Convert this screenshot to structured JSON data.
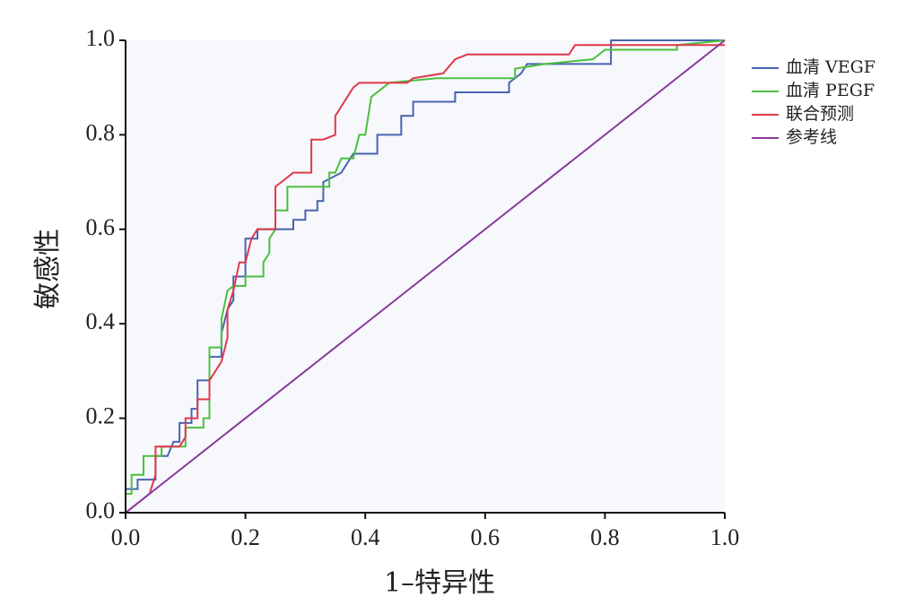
{
  "chart_data": {
    "type": "line",
    "xlabel": "1–特异性",
    "ylabel": "敏感性",
    "xlim": [
      0,
      1
    ],
    "ylim": [
      0,
      1
    ],
    "xticks": [
      {
        "value": 0,
        "label": "0.0"
      },
      0.2,
      0.4,
      0.6,
      0.8,
      {
        "value": 1,
        "label": "1.0"
      }
    ],
    "yticks": [
      {
        "value": 0,
        "label": "0.0"
      },
      0.2,
      0.4,
      0.6,
      0.8,
      {
        "value": 1,
        "label": "1.0"
      }
    ],
    "grid": false,
    "legend": "right",
    "series": [
      {
        "name": "血清 VEGF",
        "color": "#4a63b0",
        "x": [
          0,
          0,
          0.02,
          0.02,
          0.05,
          0.05,
          0.07,
          0.08,
          0.09,
          0.09,
          0.11,
          0.11,
          0.12,
          0.12,
          0.14,
          0.14,
          0.16,
          0.16,
          0.17,
          0.18,
          0.18,
          0.2,
          0.2,
          0.22,
          0.22,
          0.28,
          0.28,
          0.3,
          0.3,
          0.32,
          0.32,
          0.33,
          0.33,
          0.36,
          0.38,
          0.42,
          0.42,
          0.46,
          0.46,
          0.48,
          0.48,
          0.55,
          0.55,
          0.64,
          0.64,
          0.66,
          0.67,
          0.81,
          0.81,
          1.0
        ],
        "values": [
          0,
          0.05,
          0.05,
          0.07,
          0.07,
          0.12,
          0.12,
          0.15,
          0.15,
          0.19,
          0.19,
          0.22,
          0.22,
          0.28,
          0.28,
          0.33,
          0.33,
          0.38,
          0.43,
          0.45,
          0.5,
          0.5,
          0.58,
          0.58,
          0.6,
          0.6,
          0.62,
          0.62,
          0.64,
          0.64,
          0.66,
          0.66,
          0.7,
          0.72,
          0.76,
          0.76,
          0.8,
          0.8,
          0.84,
          0.84,
          0.87,
          0.87,
          0.89,
          0.89,
          0.91,
          0.93,
          0.95,
          0.95,
          1.0,
          1.0
        ]
      },
      {
        "name": "血清 PEGF",
        "color": "#4cbf3f",
        "x": [
          0,
          0,
          0.01,
          0.01,
          0.03,
          0.03,
          0.06,
          0.06,
          0.1,
          0.1,
          0.13,
          0.13,
          0.14,
          0.14,
          0.16,
          0.16,
          0.17,
          0.18,
          0.2,
          0.2,
          0.23,
          0.23,
          0.24,
          0.24,
          0.25,
          0.25,
          0.27,
          0.27,
          0.34,
          0.34,
          0.35,
          0.36,
          0.38,
          0.39,
          0.4,
          0.41,
          0.43,
          0.44,
          0.52,
          0.65,
          0.65,
          0.7,
          0.78,
          0.8,
          0.92,
          0.92,
          1.0
        ],
        "values": [
          0,
          0.04,
          0.04,
          0.08,
          0.08,
          0.12,
          0.12,
          0.14,
          0.14,
          0.18,
          0.18,
          0.2,
          0.2,
          0.35,
          0.35,
          0.41,
          0.47,
          0.48,
          0.48,
          0.5,
          0.5,
          0.53,
          0.55,
          0.58,
          0.6,
          0.64,
          0.64,
          0.69,
          0.69,
          0.72,
          0.72,
          0.75,
          0.75,
          0.8,
          0.8,
          0.88,
          0.9,
          0.91,
          0.92,
          0.92,
          0.94,
          0.95,
          0.96,
          0.98,
          0.98,
          0.99,
          1.0
        ]
      },
      {
        "name": "联合预测",
        "color": "#e0394a",
        "x": [
          0,
          0.02,
          0.04,
          0.05,
          0.05,
          0.09,
          0.1,
          0.1,
          0.12,
          0.12,
          0.14,
          0.14,
          0.15,
          0.16,
          0.17,
          0.17,
          0.18,
          0.19,
          0.2,
          0.21,
          0.22,
          0.25,
          0.25,
          0.26,
          0.27,
          0.28,
          0.31,
          0.31,
          0.33,
          0.35,
          0.35,
          0.36,
          0.37,
          0.38,
          0.39,
          0.47,
          0.48,
          0.53,
          0.55,
          0.57,
          0.74,
          0.75,
          0.77,
          1.0
        ],
        "values": [
          0,
          0.02,
          0.04,
          0.08,
          0.14,
          0.14,
          0.16,
          0.2,
          0.2,
          0.24,
          0.24,
          0.28,
          0.3,
          0.32,
          0.37,
          0.43,
          0.47,
          0.53,
          0.53,
          0.58,
          0.6,
          0.6,
          0.69,
          0.7,
          0.71,
          0.72,
          0.72,
          0.79,
          0.79,
          0.8,
          0.84,
          0.86,
          0.88,
          0.9,
          0.91,
          0.91,
          0.92,
          0.93,
          0.96,
          0.97,
          0.97,
          0.99,
          0.99,
          0.99
        ]
      },
      {
        "name": "参考线",
        "color": "#8a3a9c",
        "x": [
          0,
          1
        ],
        "values": [
          0,
          1
        ]
      }
    ]
  }
}
